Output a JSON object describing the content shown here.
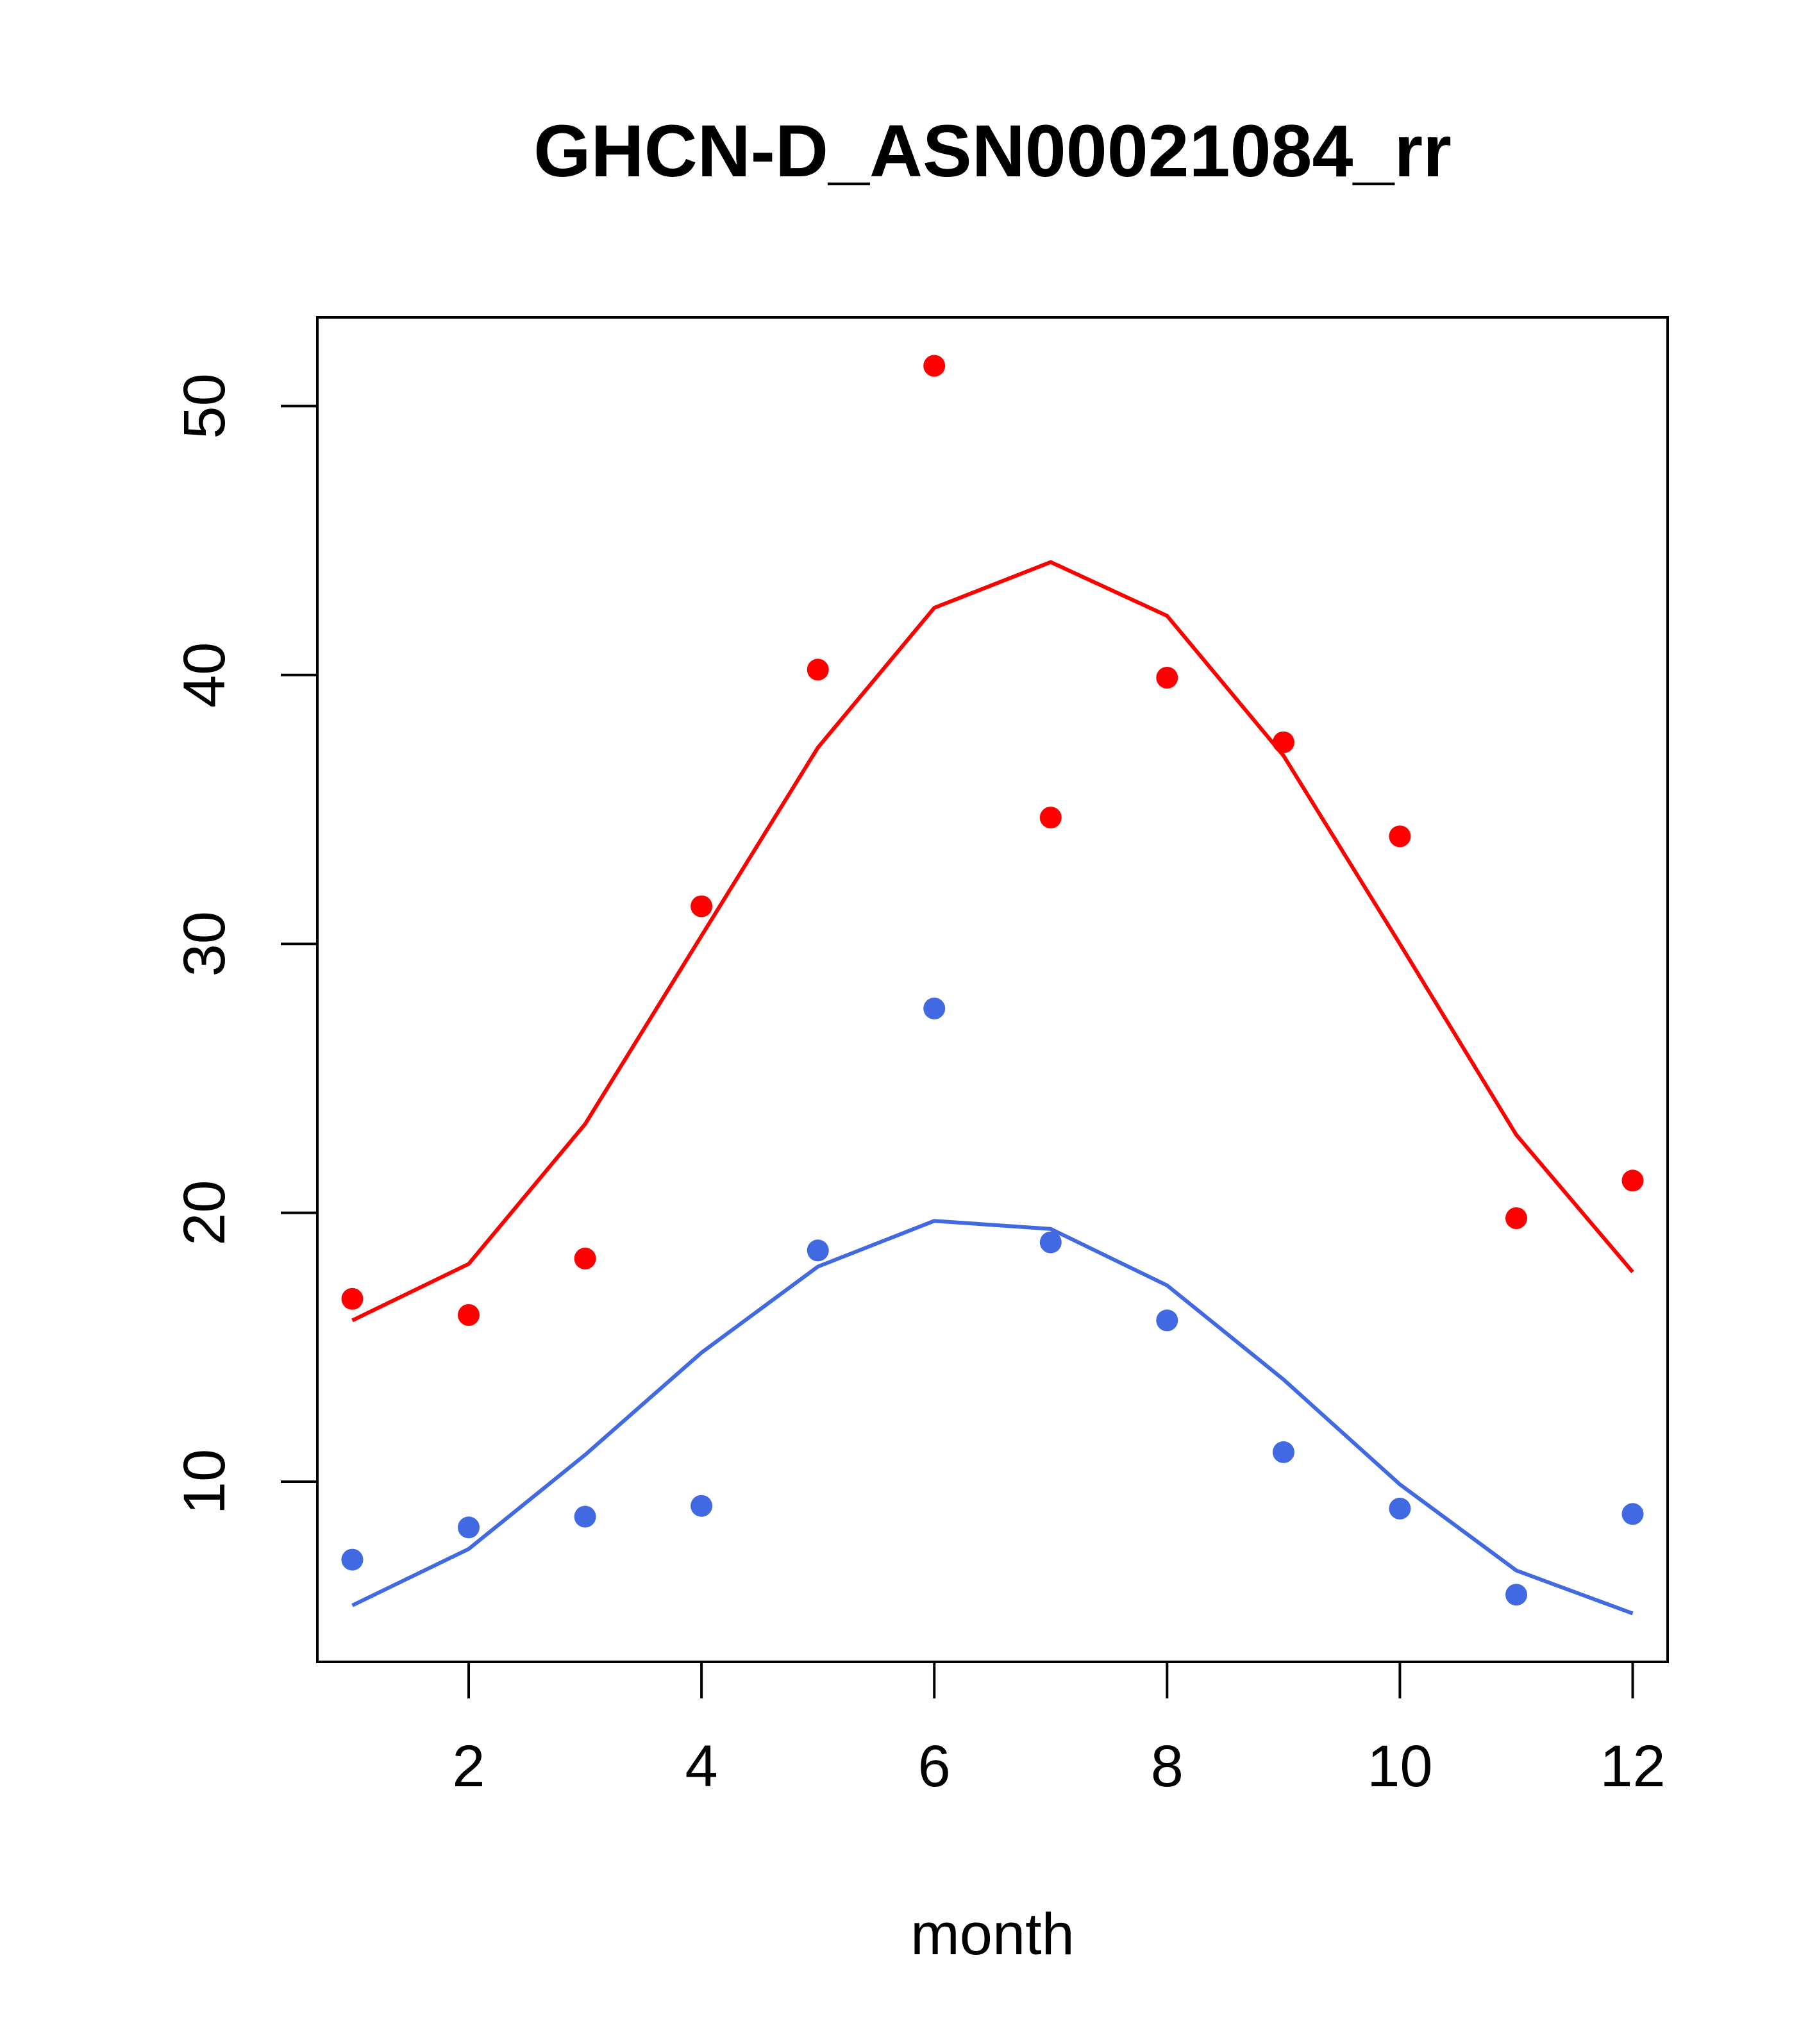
{
  "chart_data": {
    "type": "scatter",
    "title": "GHCN-D_ASN00021084_rr",
    "xlabel": "month",
    "ylabel": "",
    "xlim": [
      0.7,
      12.3
    ],
    "ylim": [
      3.3,
      53.3
    ],
    "xticks": [
      2,
      4,
      6,
      8,
      10,
      12
    ],
    "yticks": [
      10,
      20,
      30,
      40,
      50
    ],
    "grid": false,
    "legend": "none",
    "series": [
      {
        "color": "#ff0000",
        "points_x": [
          1,
          2,
          3,
          4,
          5,
          6,
          7,
          8,
          9,
          10,
          11,
          12
        ],
        "points_y": [
          16.8,
          16.2,
          18.3,
          31.4,
          40.2,
          51.5,
          34.7,
          39.9,
          37.5,
          34.0,
          19.8,
          21.2
        ],
        "line_x": [
          1,
          2,
          3,
          4,
          5,
          6,
          7,
          8,
          9,
          10,
          11,
          12
        ],
        "line_y": [
          16.0,
          18.1,
          23.3,
          30.3,
          37.3,
          42.5,
          44.2,
          42.2,
          37.0,
          30.0,
          22.9,
          17.8
        ]
      },
      {
        "color": "#4169e1",
        "points_x": [
          1,
          2,
          3,
          4,
          5,
          6,
          7,
          8,
          9,
          10,
          11,
          12
        ],
        "points_y": [
          7.1,
          8.3,
          8.7,
          9.1,
          18.6,
          27.6,
          18.9,
          16.0,
          11.1,
          9.0,
          5.8,
          8.8
        ],
        "line_x": [
          1,
          2,
          3,
          4,
          5,
          6,
          7,
          8,
          9,
          10,
          11,
          12
        ],
        "line_y": [
          5.4,
          7.5,
          11.0,
          14.8,
          18.0,
          19.7,
          19.4,
          17.3,
          13.8,
          9.9,
          6.7,
          5.1
        ]
      }
    ]
  }
}
